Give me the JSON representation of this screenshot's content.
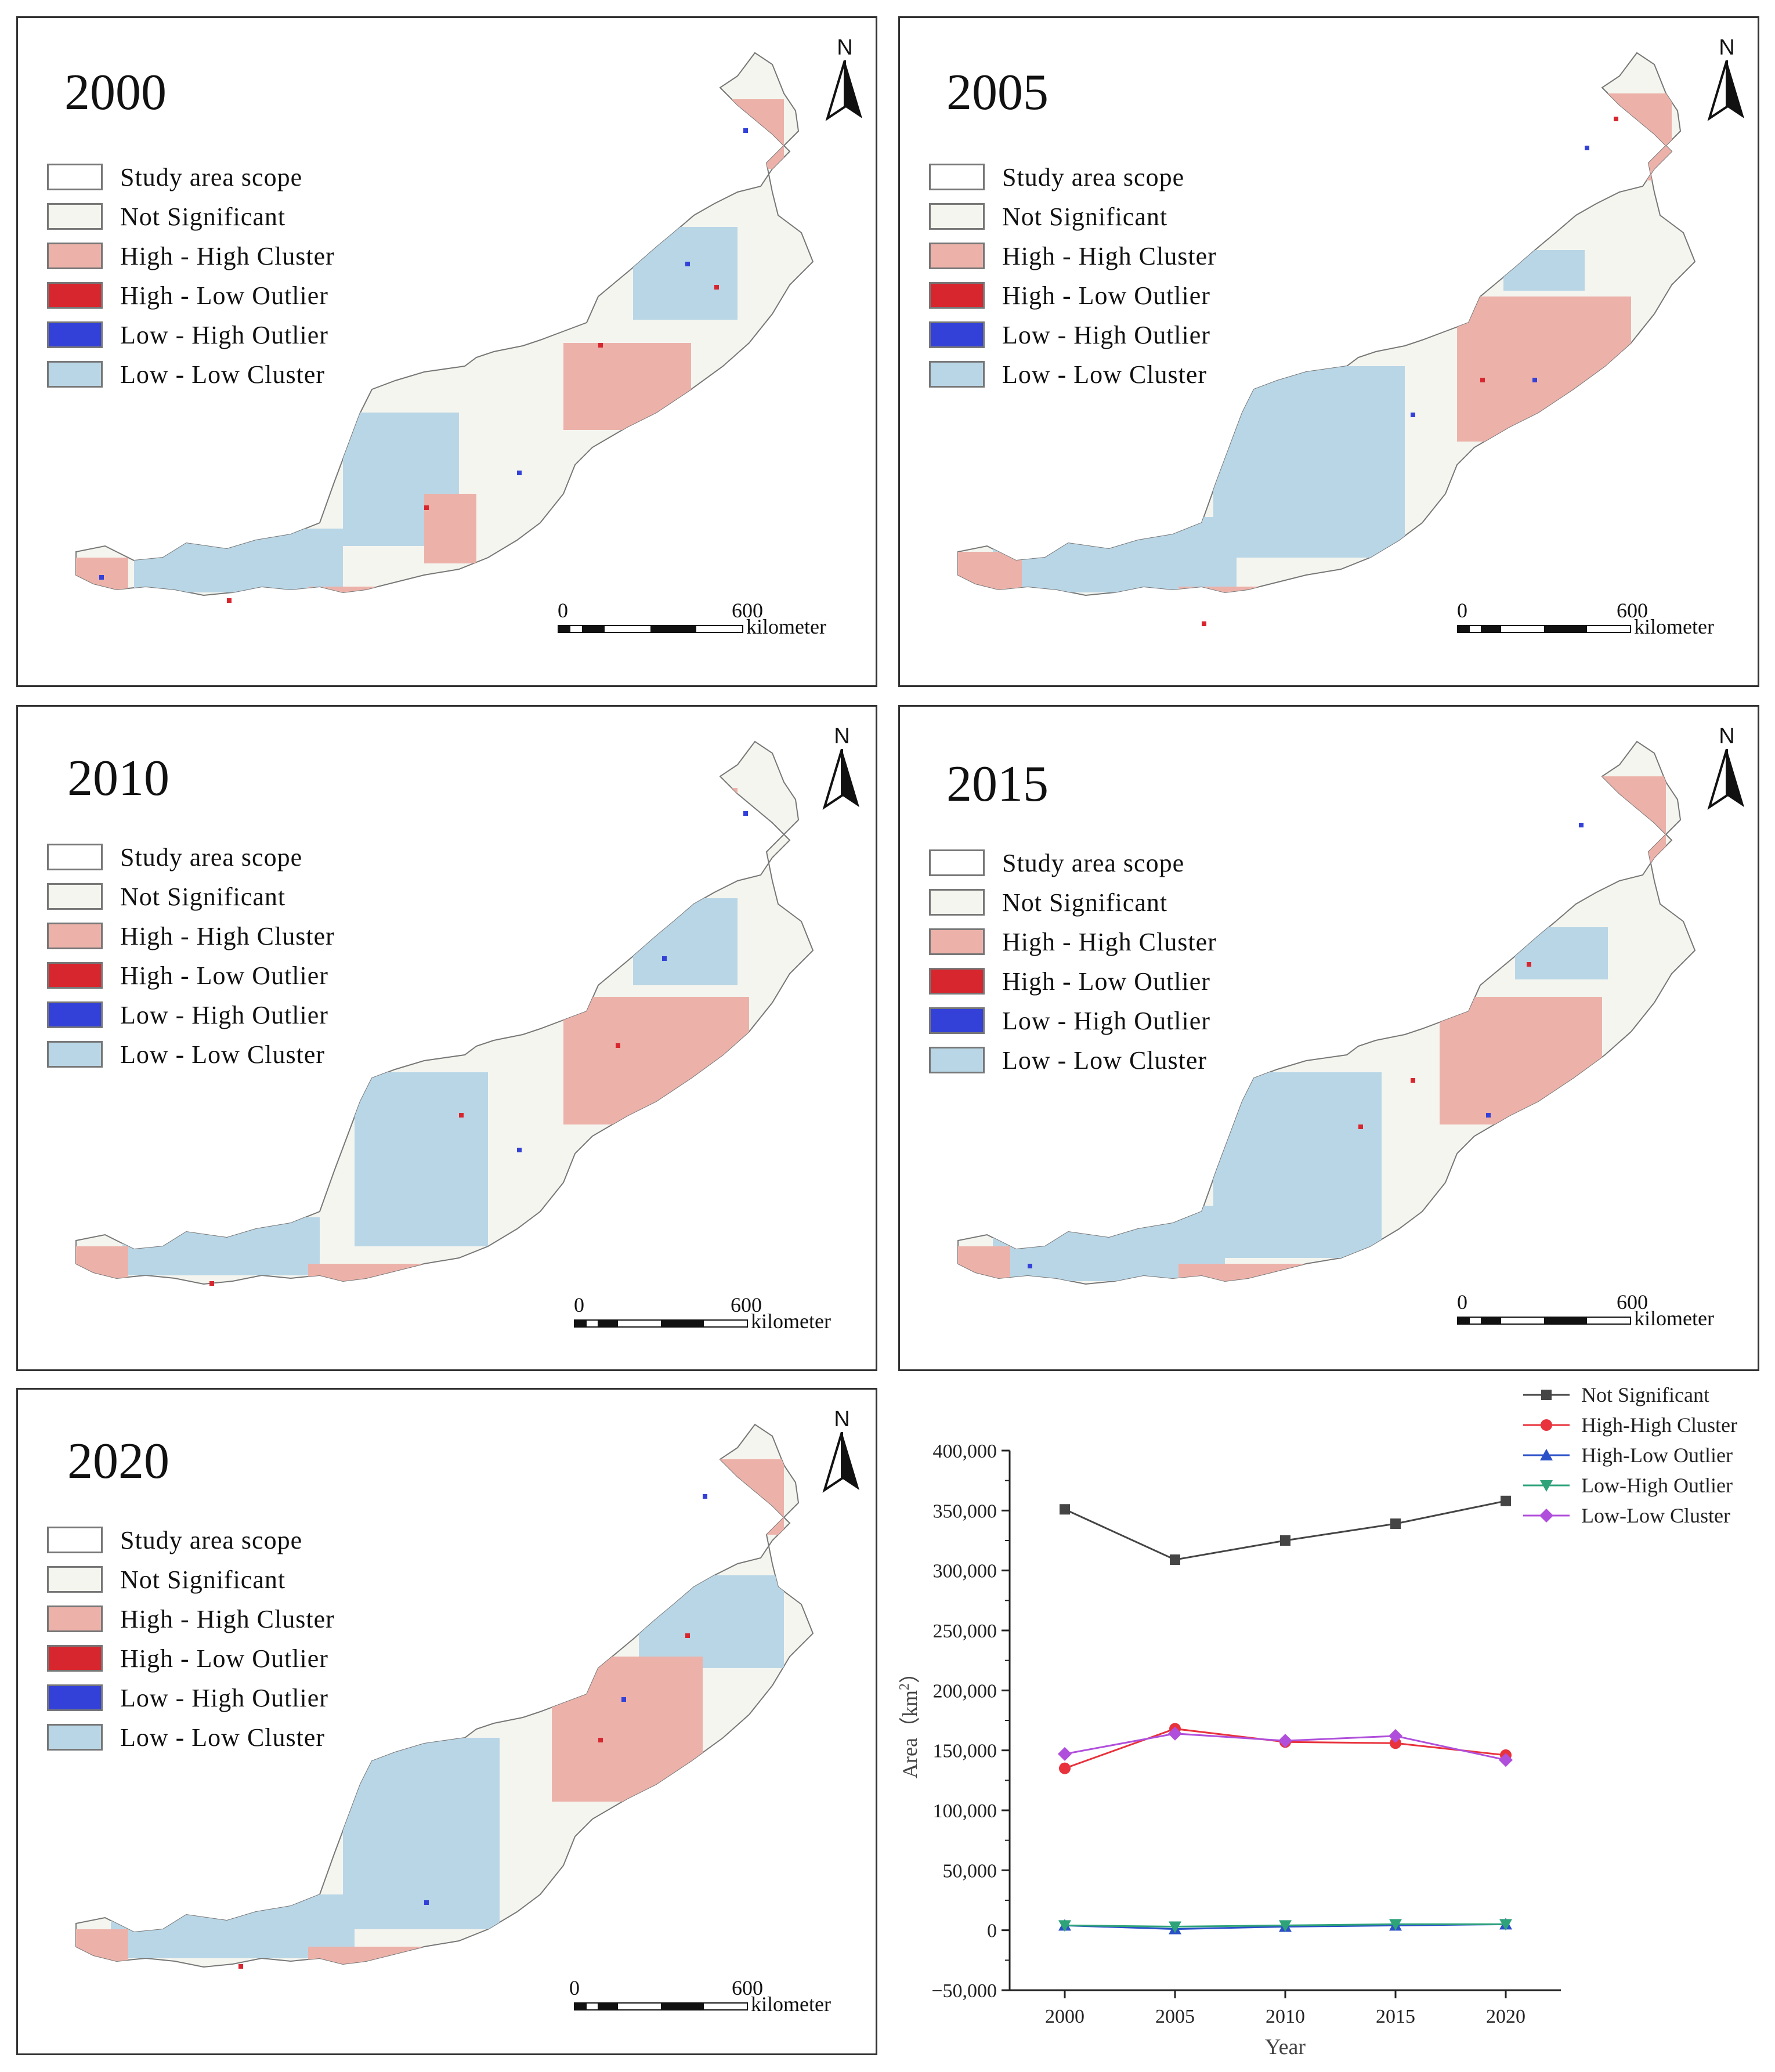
{
  "legend": {
    "items": [
      {
        "label": "Study area scope",
        "color": "#ffffff"
      },
      {
        "label": "Not Significant",
        "color": "#f5f5ef"
      },
      {
        "label": "High - High Cluster",
        "color": "#ecb2aa"
      },
      {
        "label": "High - Low Outlier",
        "color": "#d8262e"
      },
      {
        "label": "Low - High Outlier",
        "color": "#3341d8"
      },
      {
        "label": "Low - Low Cluster",
        "color": "#b9d6e6"
      }
    ]
  },
  "north_label": "N",
  "scale": {
    "zero": "0",
    "max": "600",
    "unit": "kilometer"
  },
  "maps": [
    {
      "year": "2000"
    },
    {
      "year": "2005"
    },
    {
      "year": "2010"
    },
    {
      "year": "2015"
    },
    {
      "year": "2020"
    }
  ],
  "chart_data": {
    "type": "line",
    "title": "",
    "xlabel": "Year",
    "ylabel": "Area（km²）",
    "ylabel_main": "Area（km",
    "ylabel_sup": "2",
    "ylabel_tail": "）",
    "x": [
      2000,
      2005,
      2010,
      2015,
      2020
    ],
    "x_tick_labels": [
      "2000",
      "2005",
      "2010",
      "2015",
      "2020"
    ],
    "ylim": [
      -50000,
      400000
    ],
    "y_ticks": [
      -50000,
      0,
      50000,
      100000,
      150000,
      200000,
      250000,
      300000,
      350000,
      400000
    ],
    "y_tick_labels": [
      "−50,000",
      "0",
      "50,000",
      "100,000",
      "150,000",
      "200,000",
      "250,000",
      "300,000",
      "350,000",
      "400,000"
    ],
    "legend_position": "top-right",
    "series": [
      {
        "name": "Not Significant",
        "color": "#454545",
        "marker": "square",
        "values": [
          351000,
          309000,
          325000,
          339000,
          358000
        ]
      },
      {
        "name": "High-High Cluster",
        "color": "#e8323c",
        "marker": "circle",
        "values": [
          135000,
          168000,
          157000,
          156000,
          146000
        ]
      },
      {
        "name": "High-Low Outlier",
        "color": "#2b50c8",
        "marker": "triangle-up",
        "values": [
          4000,
          1000,
          3000,
          4000,
          5000
        ]
      },
      {
        "name": "Low-High Outlier",
        "color": "#2ea37a",
        "marker": "triangle-down",
        "values": [
          4000,
          3000,
          4000,
          5000,
          5000
        ]
      },
      {
        "name": "Low-Low Cluster",
        "color": "#b04fdb",
        "marker": "diamond",
        "values": [
          147000,
          164000,
          158000,
          162000,
          142000
        ]
      }
    ]
  }
}
